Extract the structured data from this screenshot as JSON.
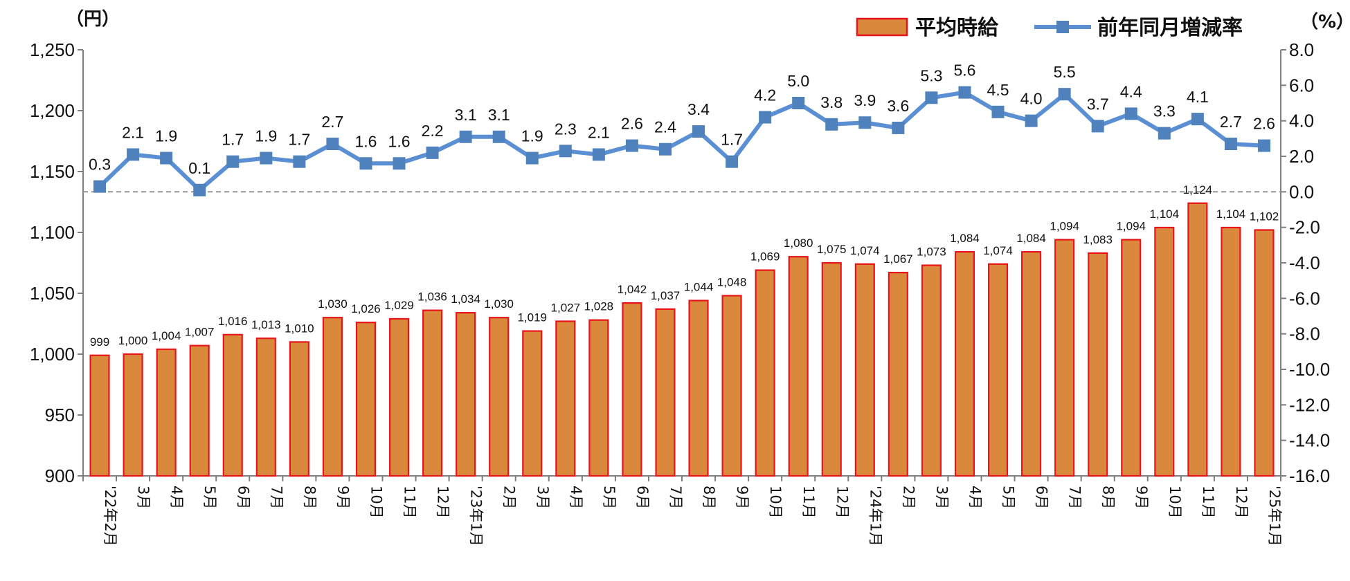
{
  "units": {
    "left": "（円）",
    "right": "（%）"
  },
  "legend": {
    "bar_label": "平均時給",
    "line_label": "前年同月増減率"
  },
  "colors": {
    "bar_fill": "#DA883C",
    "bar_stroke": "#E8141A",
    "line": "#5B8FD4",
    "marker": "#4F81BD",
    "axis": "#7F7F7F",
    "zero_line": "#8C8C8C"
  },
  "chart_data": {
    "type": "bar+line",
    "categories": [
      "'22年2月",
      "3月",
      "4月",
      "5月",
      "6月",
      "7月",
      "8月",
      "9月",
      "10月",
      "11月",
      "12月",
      "'23年1月",
      "2月",
      "3月",
      "4月",
      "5月",
      "6月",
      "7月",
      "8月",
      "9月",
      "10月",
      "11月",
      "12月",
      "'24年1月",
      "2月",
      "3月",
      "4月",
      "5月",
      "6月",
      "7月",
      "8月",
      "9月",
      "10月",
      "11月",
      "12月",
      "'25年1月"
    ],
    "series": [
      {
        "name": "平均時給",
        "type": "bar",
        "axis": "left",
        "values": [
          999,
          1000,
          1004,
          1007,
          1016,
          1013,
          1010,
          1030,
          1026,
          1029,
          1036,
          1034,
          1030,
          1019,
          1027,
          1028,
          1042,
          1037,
          1044,
          1048,
          1069,
          1080,
          1075,
          1074,
          1067,
          1073,
          1084,
          1074,
          1084,
          1094,
          1083,
          1094,
          1104,
          1124,
          1104,
          1102
        ],
        "labels": [
          "999",
          "1,000",
          "1,004",
          "1,007",
          "1,016",
          "1,013",
          "1,010",
          "1,030",
          "1,026",
          "1,029",
          "1,036",
          "1,034",
          "1,030",
          "1,019",
          "1,027",
          "1,028",
          "1,042",
          "1,037",
          "1,044",
          "1,048",
          "1,069",
          "1,080",
          "1,075",
          "1,074",
          "1,067",
          "1,073",
          "1,084",
          "1,074",
          "1,084",
          "1,094",
          "1,083",
          "1,094",
          "1,104",
          "1,124",
          "1,104",
          "1,102"
        ]
      },
      {
        "name": "前年同月増減率",
        "type": "line",
        "axis": "right",
        "values": [
          0.3,
          2.1,
          1.9,
          0.1,
          1.7,
          1.9,
          1.7,
          2.7,
          1.6,
          1.6,
          2.2,
          3.1,
          3.1,
          1.9,
          2.3,
          2.1,
          2.6,
          2.4,
          3.4,
          1.7,
          4.2,
          5.0,
          3.8,
          3.9,
          3.6,
          5.3,
          5.6,
          4.5,
          4.0,
          5.5,
          3.7,
          4.4,
          3.3,
          4.1,
          2.7,
          2.6
        ],
        "labels": [
          "0.3",
          "2.1",
          "1.9",
          "0.1",
          "1.7",
          "1.9",
          "1.7",
          "2.7",
          "1.6",
          "1.6",
          "2.2",
          "3.1",
          "3.1",
          "1.9",
          "2.3",
          "2.1",
          "2.6",
          "2.4",
          "3.4",
          "1.7",
          "4.2",
          "5.0",
          "3.8",
          "3.9",
          "3.6",
          "5.3",
          "5.6",
          "4.5",
          "4.0",
          "5.5",
          "3.7",
          "4.4",
          "3.3",
          "4.1",
          "2.7",
          "2.6"
        ]
      }
    ],
    "y_left": {
      "range": [
        900,
        1250
      ],
      "ticks": [
        900,
        950,
        1000,
        1050,
        1100,
        1150,
        1200,
        1250
      ],
      "tick_labels": [
        "900",
        "950",
        "1,000",
        "1,050",
        "1,100",
        "1,150",
        "1,200",
        "1,250"
      ]
    },
    "y_right": {
      "range": [
        -16,
        8
      ],
      "ticks": [
        -16,
        -14,
        -12,
        -10,
        -8,
        -6,
        -4,
        -2,
        0,
        2,
        4,
        6,
        8
      ],
      "tick_labels": [
        "-16.0",
        "-14.0",
        "-12.0",
        "-10.0",
        "-8.0",
        "-6.0",
        "-4.0",
        "-2.0",
        "0.0",
        "2.0",
        "4.0",
        "6.0",
        "8.0"
      ]
    },
    "zero_reference_line": "dashed",
    "grid": false,
    "legend_position": "top-right"
  }
}
